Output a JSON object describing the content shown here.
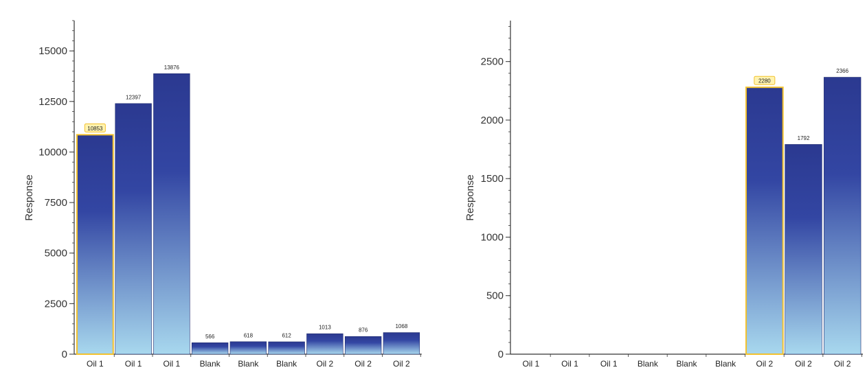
{
  "chart_data": [
    {
      "type": "bar",
      "categories": [
        "Oil 1",
        "Oil 1",
        "Oil 1",
        "Blank",
        "Blank",
        "Blank",
        "Oil 2",
        "Oil 2",
        "Oil 2"
      ],
      "values": [
        10853,
        12397,
        13876,
        566,
        618,
        612,
        1013,
        876,
        1068
      ],
      "data_labels": [
        "10853",
        "12397",
        "13876",
        "566",
        "618",
        "612",
        "1013",
        "876",
        "1068"
      ],
      "highlighted_index": 0,
      "ylabel": "Response",
      "xlabel": "",
      "ylim": [
        0,
        16500
      ],
      "yticks": [
        0,
        2500,
        5000,
        7500,
        10000,
        12500,
        15000
      ],
      "ytick_labels": [
        "0",
        "2500",
        "5000",
        "7500",
        "10000",
        "12500",
        "15000"
      ],
      "grid": false,
      "colors": {
        "bar_top": "#2b3990",
        "bar_bottom": "#a8d8ee",
        "highlight_border": "#f2c12e",
        "highlight_label_bg": "#fff3b0"
      }
    },
    {
      "type": "bar",
      "categories": [
        "Oil 1",
        "Oil 1",
        "Oil 1",
        "Blank",
        "Blank",
        "Blank",
        "Oil 2",
        "Oil 2",
        "Oil 2"
      ],
      "values": [
        null,
        null,
        null,
        null,
        null,
        null,
        2280,
        1792,
        2366
      ],
      "data_labels": [
        "",
        "",
        "",
        "",
        "",
        "",
        "2280",
        "1792",
        "2366"
      ],
      "highlighted_index": 6,
      "ylabel": "Response",
      "xlabel": "",
      "ylim": [
        0,
        2850
      ],
      "yticks": [
        0,
        500,
        1000,
        1500,
        2000,
        2500
      ],
      "ytick_labels": [
        "0",
        "500",
        "1000",
        "1500",
        "2000",
        "2500"
      ],
      "grid": false,
      "colors": {
        "bar_top": "#2b3990",
        "bar_bottom": "#a8d8ee",
        "highlight_border": "#f2c12e",
        "highlight_label_bg": "#fff3b0"
      }
    }
  ]
}
